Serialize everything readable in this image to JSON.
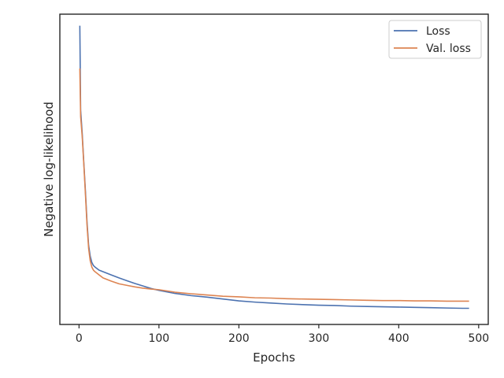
{
  "chart_data": {
    "type": "line",
    "title": "",
    "xlabel": "Epochs",
    "ylabel": "Negative log-likelihood",
    "xlim": [
      -24,
      512
    ],
    "ylim": [
      0.0,
      1.0
    ],
    "y_tick_labels_shown": false,
    "xticks": [
      0,
      100,
      200,
      300,
      400,
      500
    ],
    "xtick_labels": [
      "0",
      "100",
      "200",
      "300",
      "400",
      "500"
    ],
    "grid": false,
    "legend": "top-right",
    "series": [
      {
        "name": "Loss",
        "color": "#4c72b0",
        "x": [
          1,
          2,
          4,
          6,
          8,
          10,
          12,
          14,
          16,
          18,
          20,
          25,
          30,
          40,
          50,
          60,
          70,
          80,
          90,
          100,
          120,
          140,
          160,
          180,
          200,
          220,
          240,
          260,
          280,
          300,
          320,
          340,
          360,
          380,
          400,
          420,
          440,
          460,
          480,
          488
        ],
        "y": [
          0.963,
          0.69,
          0.615,
          0.52,
          0.43,
          0.33,
          0.255,
          0.22,
          0.2,
          0.19,
          0.185,
          0.175,
          0.17,
          0.16,
          0.15,
          0.141,
          0.132,
          0.124,
          0.116,
          0.11,
          0.1,
          0.093,
          0.088,
          0.082,
          0.076,
          0.072,
          0.069,
          0.066,
          0.064,
          0.062,
          0.061,
          0.059,
          0.058,
          0.057,
          0.056,
          0.055,
          0.054,
          0.053,
          0.052,
          0.052
        ]
      },
      {
        "name": "Val. loss",
        "color": "#dd8452",
        "x": [
          1,
          2,
          4,
          6,
          8,
          10,
          12,
          14,
          16,
          18,
          20,
          25,
          30,
          40,
          50,
          60,
          70,
          80,
          90,
          100,
          120,
          140,
          160,
          180,
          200,
          220,
          240,
          260,
          280,
          300,
          320,
          340,
          360,
          380,
          400,
          420,
          440,
          460,
          480,
          488
        ],
        "y": [
          0.825,
          0.67,
          0.605,
          0.515,
          0.42,
          0.32,
          0.245,
          0.205,
          0.185,
          0.175,
          0.17,
          0.16,
          0.15,
          0.14,
          0.131,
          0.126,
          0.121,
          0.117,
          0.114,
          0.112,
          0.104,
          0.099,
          0.095,
          0.091,
          0.089,
          0.086,
          0.085,
          0.083,
          0.082,
          0.081,
          0.08,
          0.079,
          0.078,
          0.077,
          0.077,
          0.076,
          0.076,
          0.075,
          0.075,
          0.075
        ]
      }
    ]
  }
}
